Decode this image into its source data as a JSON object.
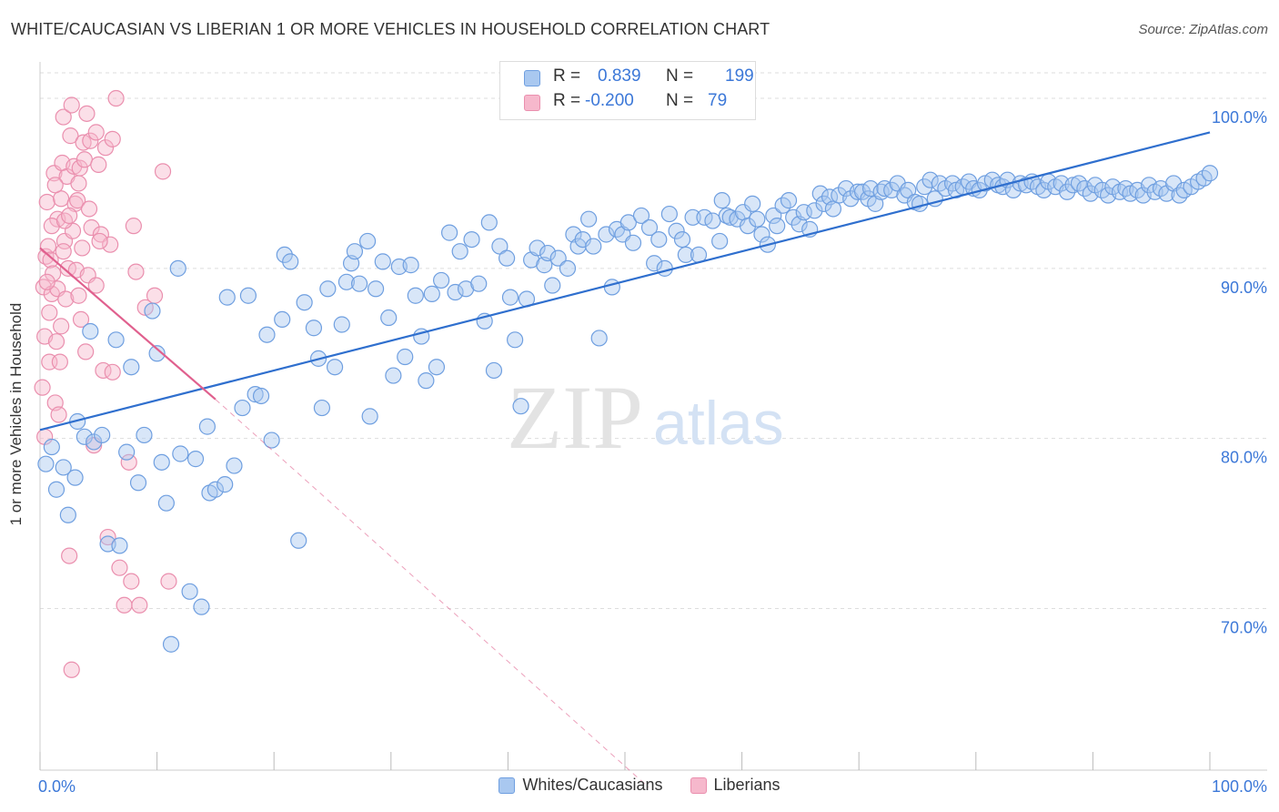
{
  "title": "WHITE/CAUCASIAN VS LIBERIAN 1 OR MORE VEHICLES IN HOUSEHOLD CORRELATION CHART",
  "source": "Source: ZipAtlas.com",
  "watermark": {
    "zip": "ZIP",
    "atlas": "atlas"
  },
  "colors": {
    "blue_fill": "#a9c8f0",
    "blue_stroke": "#6f9fe0",
    "blue_line": "#2f6fce",
    "pink_fill": "#f6b8cc",
    "pink_stroke": "#ea8fae",
    "pink_line": "#e0608e",
    "accent_text": "#3c78d8",
    "grid": "#dddddd"
  },
  "stats_legend": {
    "rows": [
      {
        "r_label": "R =",
        "r_value": "0.839",
        "n_label": "N =",
        "n_value": "199"
      },
      {
        "r_label": "R =",
        "r_value": "-0.200",
        "n_label": "N =",
        "n_value": "79"
      }
    ]
  },
  "legend": [
    {
      "label": "Whites/Caucasians"
    },
    {
      "label": "Liberians"
    }
  ],
  "chart_data": {
    "type": "scatter",
    "title": "WHITE/CAUCASIAN VS LIBERIAN 1 OR MORE VEHICLES IN HOUSEHOLD CORRELATION CHART",
    "ylabel": "1 or more Vehicles in Household",
    "xlabel": "",
    "xlim": [
      0,
      100
    ],
    "ylim": [
      60.5,
      101.5
    ],
    "x_tick_labels": [
      "0.0%",
      "100.0%"
    ],
    "y_ticks": [
      70,
      80,
      90,
      100
    ],
    "y_tick_labels": [
      "70.0%",
      "80.0%",
      "90.0%",
      "100.0%"
    ],
    "grid": true,
    "legend_position": "bottom-center",
    "series": [
      {
        "name": "Whites/Caucasians",
        "r": 0.839,
        "n": 199,
        "trend": {
          "x": [
            0,
            100
          ],
          "y": [
            80.5,
            98.0
          ],
          "dashed_extension": false
        },
        "points": [
          [
            0.5,
            78.5
          ],
          [
            1.0,
            79.5
          ],
          [
            1.4,
            77.0
          ],
          [
            2.0,
            78.3
          ],
          [
            2.4,
            75.5
          ],
          [
            3.0,
            77.7
          ],
          [
            3.2,
            81.0
          ],
          [
            3.8,
            80.1
          ],
          [
            4.3,
            86.3
          ],
          [
            4.6,
            79.8
          ],
          [
            5.3,
            80.2
          ],
          [
            5.8,
            73.8
          ],
          [
            6.5,
            85.8
          ],
          [
            6.8,
            73.7
          ],
          [
            7.4,
            79.2
          ],
          [
            7.8,
            84.2
          ],
          [
            8.4,
            77.4
          ],
          [
            8.9,
            80.2
          ],
          [
            9.6,
            87.5
          ],
          [
            10.0,
            85.0
          ],
          [
            10.4,
            78.6
          ],
          [
            10.8,
            76.2
          ],
          [
            11.2,
            67.9
          ],
          [
            11.8,
            90.0
          ],
          [
            12.0,
            79.1
          ],
          [
            12.8,
            71.0
          ],
          [
            13.3,
            78.8
          ],
          [
            13.8,
            70.1
          ],
          [
            14.3,
            80.7
          ],
          [
            14.5,
            76.8
          ],
          [
            15.0,
            77.0
          ],
          [
            15.8,
            77.3
          ],
          [
            16.0,
            88.3
          ],
          [
            16.6,
            78.4
          ],
          [
            17.3,
            81.8
          ],
          [
            17.8,
            88.4
          ],
          [
            18.4,
            82.6
          ],
          [
            18.9,
            82.5
          ],
          [
            19.4,
            86.1
          ],
          [
            19.8,
            79.9
          ],
          [
            20.7,
            87.0
          ],
          [
            20.9,
            90.8
          ],
          [
            21.4,
            90.4
          ],
          [
            22.1,
            74.0
          ],
          [
            22.6,
            88.0
          ],
          [
            23.4,
            86.5
          ],
          [
            23.8,
            84.7
          ],
          [
            24.1,
            81.8
          ],
          [
            24.6,
            88.8
          ],
          [
            25.2,
            84.2
          ],
          [
            25.8,
            86.7
          ],
          [
            26.2,
            89.2
          ],
          [
            26.6,
            90.3
          ],
          [
            26.9,
            91.0
          ],
          [
            27.3,
            89.1
          ],
          [
            28.0,
            91.6
          ],
          [
            28.2,
            81.3
          ],
          [
            28.7,
            88.8
          ],
          [
            29.3,
            90.4
          ],
          [
            29.8,
            87.1
          ],
          [
            30.2,
            83.7
          ],
          [
            30.7,
            90.1
          ],
          [
            31.2,
            84.8
          ],
          [
            31.7,
            90.2
          ],
          [
            32.1,
            88.4
          ],
          [
            32.6,
            86.0
          ],
          [
            33.0,
            83.4
          ],
          [
            33.5,
            88.5
          ],
          [
            33.9,
            84.2
          ],
          [
            34.3,
            89.3
          ],
          [
            35.0,
            92.1
          ],
          [
            35.5,
            88.6
          ],
          [
            35.9,
            91.0
          ],
          [
            36.4,
            88.8
          ],
          [
            36.9,
            91.7
          ],
          [
            37.5,
            89.1
          ],
          [
            38.0,
            86.9
          ],
          [
            38.4,
            92.7
          ],
          [
            38.8,
            84.0
          ],
          [
            39.3,
            91.3
          ],
          [
            39.9,
            90.6
          ],
          [
            40.2,
            88.3
          ],
          [
            40.6,
            85.8
          ],
          [
            41.1,
            81.9
          ],
          [
            41.6,
            88.2
          ],
          [
            42.0,
            90.5
          ],
          [
            42.5,
            91.2
          ],
          [
            43.1,
            90.2
          ],
          [
            43.4,
            90.9
          ],
          [
            43.8,
            89.0
          ],
          [
            44.3,
            90.6
          ],
          [
            45.1,
            90.0
          ],
          [
            45.6,
            92.0
          ],
          [
            46.0,
            91.3
          ],
          [
            46.4,
            91.7
          ],
          [
            46.9,
            92.9
          ],
          [
            47.3,
            91.3
          ],
          [
            47.8,
            85.9
          ],
          [
            48.4,
            92.0
          ],
          [
            48.9,
            88.9
          ],
          [
            49.3,
            92.3
          ],
          [
            49.8,
            92.0
          ],
          [
            50.3,
            92.7
          ],
          [
            50.7,
            91.5
          ],
          [
            51.4,
            93.1
          ],
          [
            52.1,
            92.4
          ],
          [
            52.5,
            90.3
          ],
          [
            52.9,
            91.7
          ],
          [
            53.4,
            90.0
          ],
          [
            53.8,
            93.2
          ],
          [
            54.4,
            92.2
          ],
          [
            54.9,
            91.7
          ],
          [
            55.2,
            90.8
          ],
          [
            55.8,
            93.0
          ],
          [
            56.3,
            90.8
          ],
          [
            56.8,
            93.0
          ],
          [
            57.5,
            92.8
          ],
          [
            58.1,
            91.6
          ],
          [
            58.3,
            94.0
          ],
          [
            58.7,
            93.1
          ],
          [
            59.0,
            93.0
          ],
          [
            59.6,
            92.9
          ],
          [
            60.1,
            93.3
          ],
          [
            60.5,
            92.5
          ],
          [
            60.9,
            93.8
          ],
          [
            61.3,
            92.9
          ],
          [
            61.7,
            92.0
          ],
          [
            62.2,
            91.4
          ],
          [
            62.7,
            93.1
          ],
          [
            63.0,
            92.5
          ],
          [
            63.5,
            93.7
          ],
          [
            64.0,
            94.0
          ],
          [
            64.4,
            93.0
          ],
          [
            64.9,
            92.6
          ],
          [
            65.3,
            93.3
          ],
          [
            65.8,
            92.3
          ],
          [
            66.2,
            93.4
          ],
          [
            66.7,
            94.4
          ],
          [
            67.0,
            93.8
          ],
          [
            67.5,
            94.2
          ],
          [
            67.8,
            93.5
          ],
          [
            68.3,
            94.3
          ],
          [
            68.9,
            94.7
          ],
          [
            69.3,
            94.1
          ],
          [
            69.9,
            94.5
          ],
          [
            70.3,
            94.5
          ],
          [
            70.8,
            94.1
          ],
          [
            71.0,
            94.7
          ],
          [
            71.4,
            93.8
          ],
          [
            71.9,
            94.5
          ],
          [
            72.2,
            94.7
          ],
          [
            72.8,
            94.6
          ],
          [
            73.3,
            95.0
          ],
          [
            73.9,
            94.3
          ],
          [
            74.2,
            94.6
          ],
          [
            74.8,
            93.9
          ],
          [
            75.2,
            93.8
          ],
          [
            75.6,
            94.8
          ],
          [
            76.1,
            95.2
          ],
          [
            76.5,
            94.1
          ],
          [
            76.9,
            95.0
          ],
          [
            77.4,
            94.7
          ],
          [
            78.0,
            95.0
          ],
          [
            78.3,
            94.6
          ],
          [
            78.9,
            94.8
          ],
          [
            79.4,
            95.1
          ],
          [
            79.8,
            94.7
          ],
          [
            80.3,
            94.6
          ],
          [
            80.8,
            95.0
          ],
          [
            81.4,
            95.2
          ],
          [
            81.9,
            94.9
          ],
          [
            82.3,
            94.8
          ],
          [
            82.7,
            95.2
          ],
          [
            83.2,
            94.6
          ],
          [
            83.8,
            95.0
          ],
          [
            84.3,
            94.9
          ],
          [
            84.8,
            95.1
          ],
          [
            85.3,
            94.8
          ],
          [
            85.8,
            94.6
          ],
          [
            86.2,
            95.1
          ],
          [
            86.8,
            94.8
          ],
          [
            87.3,
            95.0
          ],
          [
            87.8,
            94.5
          ],
          [
            88.3,
            94.9
          ],
          [
            88.8,
            95.0
          ],
          [
            89.3,
            94.7
          ],
          [
            89.8,
            94.4
          ],
          [
            90.2,
            94.9
          ],
          [
            90.8,
            94.6
          ],
          [
            91.3,
            94.3
          ],
          [
            91.7,
            94.8
          ],
          [
            92.3,
            94.5
          ],
          [
            92.8,
            94.7
          ],
          [
            93.2,
            94.4
          ],
          [
            93.8,
            94.6
          ],
          [
            94.3,
            94.3
          ],
          [
            94.8,
            94.9
          ],
          [
            95.3,
            94.5
          ],
          [
            95.8,
            94.7
          ],
          [
            96.3,
            94.4
          ],
          [
            96.9,
            95.0
          ],
          [
            97.4,
            94.3
          ],
          [
            97.8,
            94.6
          ],
          [
            98.4,
            94.8
          ],
          [
            99.0,
            95.1
          ],
          [
            99.5,
            95.3
          ],
          [
            100.0,
            95.6
          ]
        ]
      },
      {
        "name": "Liberians",
        "r": -0.2,
        "n": 79,
        "trend": {
          "x": [
            0,
            15,
            52
          ],
          "y": [
            91.2,
            82.3,
            59.5
          ],
          "dashed_extension": true
        },
        "points": [
          [
            0.2,
            83.0
          ],
          [
            0.3,
            88.9
          ],
          [
            0.4,
            86.0
          ],
          [
            0.5,
            90.7
          ],
          [
            0.6,
            93.9
          ],
          [
            0.7,
            91.3
          ],
          [
            0.8,
            84.5
          ],
          [
            0.8,
            87.4
          ],
          [
            0.9,
            90.5
          ],
          [
            1.0,
            88.5
          ],
          [
            1.1,
            89.7
          ],
          [
            1.2,
            95.6
          ],
          [
            1.3,
            82.1
          ],
          [
            1.4,
            85.7
          ],
          [
            1.5,
            92.9
          ],
          [
            1.5,
            88.8
          ],
          [
            1.6,
            81.4
          ],
          [
            1.7,
            84.5
          ],
          [
            1.8,
            94.1
          ],
          [
            1.9,
            96.2
          ],
          [
            2.0,
            98.9
          ],
          [
            2.1,
            91.6
          ],
          [
            2.2,
            88.2
          ],
          [
            2.3,
            95.4
          ],
          [
            2.4,
            90.0
          ],
          [
            2.5,
            73.1
          ],
          [
            2.6,
            97.8
          ],
          [
            2.7,
            66.4
          ],
          [
            2.8,
            92.2
          ],
          [
            2.9,
            96.0
          ],
          [
            3.0,
            93.8
          ],
          [
            3.1,
            89.9
          ],
          [
            3.2,
            94.0
          ],
          [
            3.3,
            88.4
          ],
          [
            3.4,
            95.9
          ],
          [
            3.5,
            87.0
          ],
          [
            3.6,
            91.2
          ],
          [
            3.7,
            97.4
          ],
          [
            3.8,
            96.4
          ],
          [
            4.0,
            99.1
          ],
          [
            4.1,
            89.6
          ],
          [
            4.2,
            93.5
          ],
          [
            4.3,
            97.5
          ],
          [
            4.4,
            92.4
          ],
          [
            4.6,
            79.6
          ],
          [
            4.8,
            89.0
          ],
          [
            5.0,
            96.1
          ],
          [
            5.2,
            92.0
          ],
          [
            5.4,
            84.0
          ],
          [
            5.6,
            97.1
          ],
          [
            5.8,
            74.2
          ],
          [
            6.0,
            91.4
          ],
          [
            6.2,
            83.9
          ],
          [
            6.5,
            100.0
          ],
          [
            6.8,
            72.4
          ],
          [
            7.2,
            70.2
          ],
          [
            7.6,
            78.6
          ],
          [
            7.8,
            71.6
          ],
          [
            8.0,
            92.5
          ],
          [
            8.2,
            89.8
          ],
          [
            8.5,
            70.2
          ],
          [
            9.0,
            87.7
          ],
          [
            9.8,
            88.4
          ],
          [
            10.5,
            95.7
          ],
          [
            11.0,
            71.6
          ],
          [
            2.0,
            91.0
          ],
          [
            1.0,
            92.5
          ],
          [
            0.6,
            89.2
          ],
          [
            2.7,
            99.6
          ],
          [
            3.3,
            95.0
          ],
          [
            4.8,
            98.0
          ],
          [
            1.3,
            94.9
          ],
          [
            2.1,
            92.8
          ],
          [
            3.9,
            85.1
          ],
          [
            0.4,
            80.1
          ],
          [
            1.8,
            86.6
          ],
          [
            5.1,
            91.6
          ],
          [
            2.5,
            93.1
          ],
          [
            6.2,
            97.6
          ]
        ]
      }
    ]
  }
}
